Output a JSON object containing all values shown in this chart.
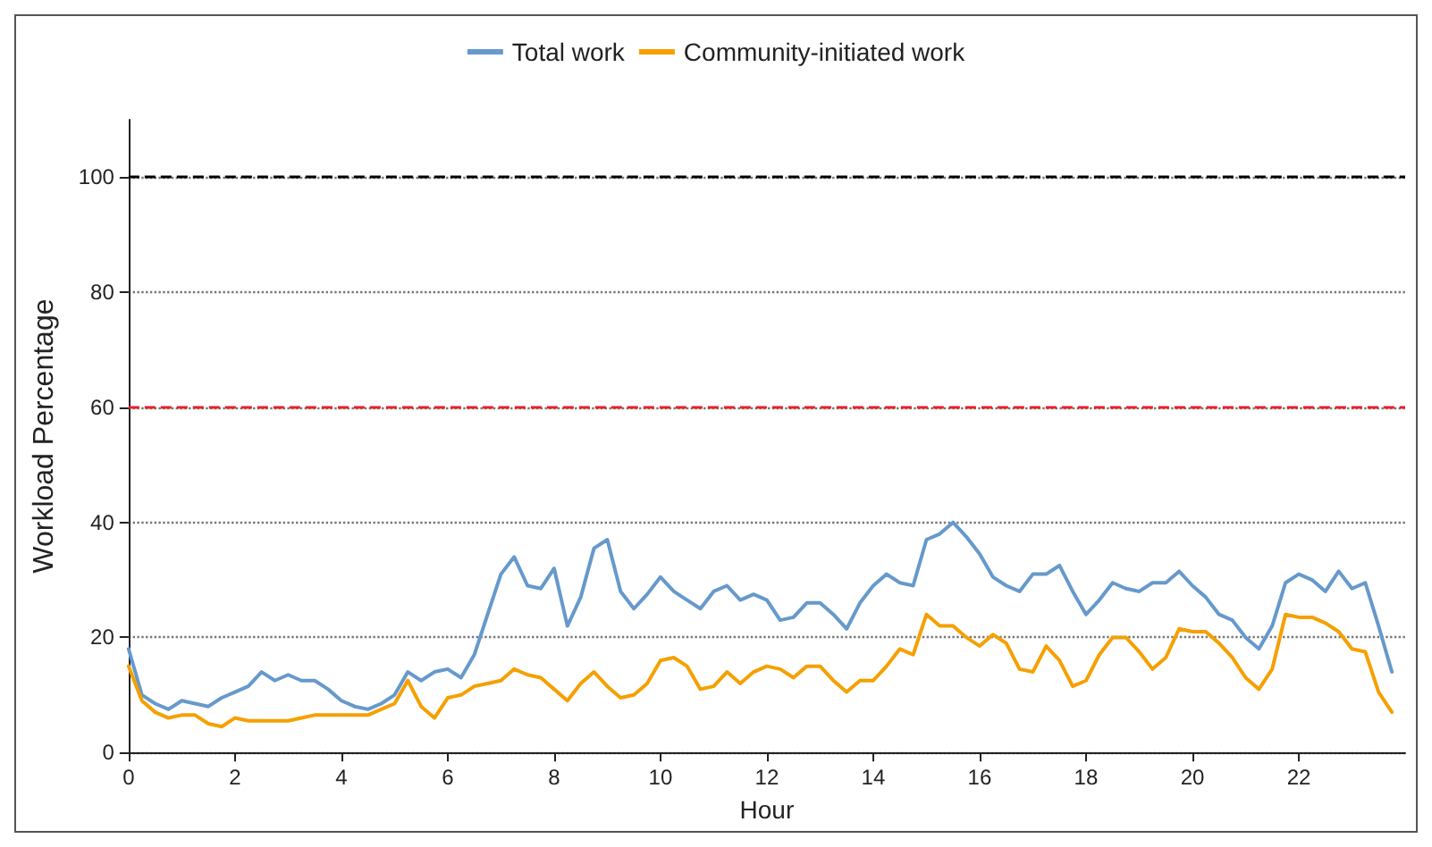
{
  "chart_data": {
    "type": "line",
    "xlabel": "Hour",
    "ylabel": "Workload Percentage",
    "legend": "top",
    "grid": "y",
    "marker": "none",
    "line_style": "solid",
    "xlim": [
      0,
      24
    ],
    "xticks": [
      0,
      2,
      4,
      6,
      8,
      10,
      12,
      14,
      16,
      18,
      20,
      22
    ],
    "ylim": [
      0,
      110
    ],
    "yticks": [
      0,
      20,
      40,
      60,
      80,
      100
    ],
    "x": [
      0,
      0.25,
      0.5,
      0.75,
      1,
      1.25,
      1.5,
      1.75,
      2,
      2.25,
      2.5,
      2.75,
      3,
      3.25,
      3.5,
      3.75,
      4,
      4.25,
      4.5,
      4.75,
      5,
      5.25,
      5.5,
      5.75,
      6,
      6.25,
      6.5,
      6.75,
      7,
      7.25,
      7.5,
      7.75,
      8,
      8.25,
      8.5,
      8.75,
      9,
      9.25,
      9.5,
      9.75,
      10,
      10.25,
      10.5,
      10.75,
      11,
      11.25,
      11.5,
      11.75,
      12,
      12.25,
      12.5,
      12.75,
      13,
      13.25,
      13.5,
      13.75,
      14,
      14.25,
      14.5,
      14.75,
      15,
      15.25,
      15.5,
      15.75,
      16,
      16.25,
      16.5,
      16.75,
      17,
      17.25,
      17.5,
      17.75,
      18,
      18.25,
      18.5,
      18.75,
      19,
      19.25,
      19.5,
      19.75,
      20,
      20.25,
      20.5,
      20.75,
      21,
      21.25,
      21.5,
      21.75,
      22,
      22.25,
      22.5,
      22.75,
      23,
      23.25,
      23.5,
      23.75
    ],
    "series": [
      {
        "name": "Total work",
        "color": "#6699cc",
        "values": [
          18,
          10,
          8.5,
          7.5,
          9,
          8.5,
          8,
          9.5,
          10.5,
          11.5,
          14,
          12.5,
          13.5,
          12.5,
          12.5,
          11,
          9,
          8,
          7.5,
          8.5,
          10,
          14,
          12.5,
          14,
          14.5,
          13,
          17,
          24,
          31,
          34,
          29,
          28.5,
          32,
          22,
          27,
          35.5,
          37,
          28,
          25,
          27.5,
          30.5,
          28,
          26.5,
          25,
          28,
          29,
          26.5,
          27.5,
          26.5,
          23,
          23.5,
          26,
          26,
          24,
          21.5,
          26,
          29,
          31,
          29.5,
          29,
          37,
          38,
          40,
          37.5,
          34.5,
          30.5,
          29,
          28,
          31,
          31,
          32.5,
          28,
          24,
          26.5,
          29.5,
          28.5,
          28,
          29.5,
          29.5,
          31.5,
          29,
          27,
          24,
          23,
          20,
          18,
          22,
          29.5,
          31,
          30,
          28,
          31.5,
          28.5,
          29.5,
          22,
          14
        ]
      },
      {
        "name": "Community-initiated work",
        "color": "#f5a000",
        "values": [
          15,
          9,
          7,
          6,
          6.5,
          6.5,
          5,
          4.5,
          6,
          5.5,
          5.5,
          5.5,
          5.5,
          6,
          6.5,
          6.5,
          6.5,
          6.5,
          6.5,
          7.5,
          8.5,
          12.5,
          8,
          6,
          9.5,
          10,
          11.5,
          12,
          12.5,
          14.5,
          13.5,
          13,
          11,
          9,
          12,
          14,
          11.5,
          9.5,
          10,
          12,
          16,
          16.5,
          15,
          11,
          11.5,
          14,
          12,
          14,
          15,
          14.5,
          13,
          15,
          15,
          12.5,
          10.5,
          12.5,
          12.5,
          15,
          18,
          17,
          24,
          22,
          22,
          20,
          18.5,
          20.5,
          19,
          14.5,
          14,
          18.5,
          16,
          11.5,
          12.5,
          17,
          20,
          20,
          17.5,
          14.5,
          16.5,
          21.5,
          21,
          21,
          19,
          16.5,
          13,
          11,
          14.5,
          24,
          23.5,
          23.5,
          22.5,
          21,
          18,
          17.5,
          10.5,
          7
        ]
      }
    ],
    "ref_lines": [
      {
        "axis": "y",
        "value": 100,
        "color": "#000000",
        "line_style": "dashed"
      },
      {
        "axis": "y",
        "value": 60,
        "color": "#e8202a",
        "line_style": "dashed"
      }
    ]
  }
}
